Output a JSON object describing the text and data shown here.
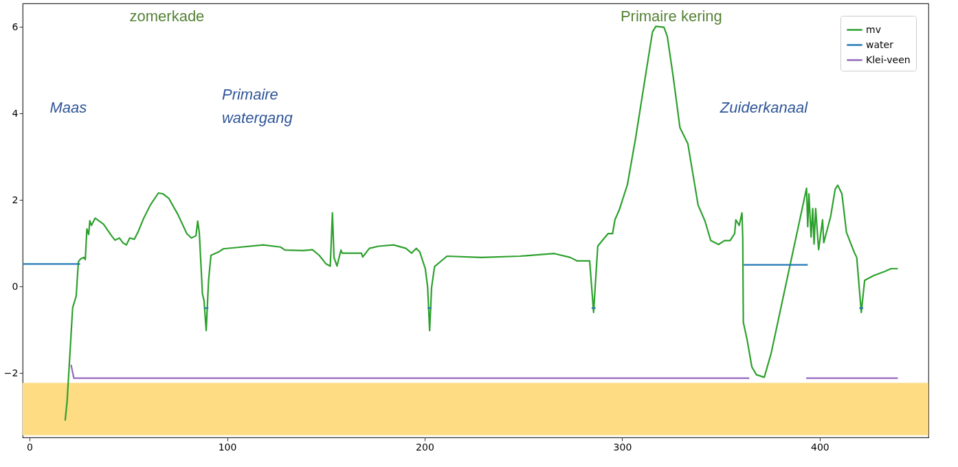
{
  "chart_data": {
    "type": "line",
    "xlim": [
      -3.5,
      455
    ],
    "ylim": [
      -3.49,
      6.54
    ],
    "xticks": [
      0,
      100,
      200,
      300,
      400
    ],
    "yticks": [
      {
        "value": -2,
        "label": "−2"
      },
      0,
      2,
      4,
      6
    ],
    "grid": false,
    "legend": "top right",
    "line_style": "solid",
    "marker": "none",
    "series": [
      {
        "name": "mv",
        "color": "#2ca02c",
        "x": [
          18.0,
          19.0,
          21.8,
          23.6,
          24.7,
          25.9,
          27.6,
          28.2,
          29.0,
          29.9,
          30.5,
          31.3,
          33.2,
          37.4,
          41.5,
          43.2,
          45.5,
          47.2,
          49.0,
          50.7,
          53.0,
          54.8,
          57.6,
          61.1,
          65.2,
          67.5,
          70.4,
          75.0,
          79.6,
          81.9,
          84.2,
          85.1,
          85.9,
          87.5,
          88.3,
          89.4,
          90.6,
          91.8,
          95.8,
          98.1,
          102.7,
          118.3,
          127.0,
          129.3,
          138.5,
          143.2,
          146.6,
          150.1,
          152.2,
          153.3,
          154.1,
          155.6,
          157.6,
          158.2,
          168.0,
          168.6,
          172.0,
          176.7,
          184.2,
          190.5,
          193.4,
          195.7,
          197.5,
          200.3,
          201.5,
          202.5,
          203.5,
          205.0,
          211.3,
          228.6,
          248.3,
          265.6,
          273.7,
          277.2,
          283.5,
          285.5,
          287.6,
          289.9,
          292.8,
          295.1,
          296.3,
          298.5,
          302.6,
          306.7,
          311.8,
          315.3,
          317.0,
          321.1,
          322.8,
          325.7,
          329.2,
          333.2,
          336.1,
          338.4,
          341.9,
          344.8,
          348.8,
          351.7,
          354.6,
          356.9,
          357.5,
          359.2,
          360.6,
          361.0,
          361.3,
          363.2,
          365.6,
          367.9,
          371.9,
          375.4,
          393.3,
          393.9,
          394.5,
          395.6,
          396.4,
          397.1,
          397.9,
          399.4,
          401.4,
          402.0,
          405.5,
          407.8,
          409.1,
          411.2,
          413.5,
          417.6,
          418.7,
          421.0,
          422.7,
          427.3,
          433.1,
          436.0,
          439.5
        ],
        "values": [
          -3.1,
          -2.65,
          -0.49,
          -0.22,
          0.57,
          0.64,
          0.67,
          0.62,
          1.33,
          1.2,
          1.52,
          1.41,
          1.58,
          1.44,
          1.17,
          1.07,
          1.12,
          1.01,
          0.96,
          1.12,
          1.09,
          1.25,
          1.56,
          1.88,
          2.16,
          2.14,
          2.04,
          1.67,
          1.22,
          1.12,
          1.17,
          1.51,
          1.25,
          -0.17,
          -0.33,
          -1.02,
          0.14,
          0.72,
          0.8,
          0.87,
          0.89,
          0.96,
          0.91,
          0.84,
          0.83,
          0.85,
          0.72,
          0.52,
          0.47,
          1.7,
          0.67,
          0.47,
          0.84,
          0.77,
          0.77,
          0.68,
          0.88,
          0.93,
          0.96,
          0.88,
          0.77,
          0.88,
          0.8,
          0.41,
          -0.02,
          -1.02,
          -0.02,
          0.46,
          0.7,
          0.67,
          0.7,
          0.76,
          0.67,
          0.59,
          0.59,
          -0.6,
          0.93,
          1.06,
          1.22,
          1.22,
          1.54,
          1.77,
          2.35,
          3.41,
          4.88,
          5.88,
          6.01,
          5.99,
          5.78,
          4.88,
          3.67,
          3.3,
          2.51,
          1.88,
          1.51,
          1.06,
          0.97,
          1.06,
          1.06,
          1.22,
          1.54,
          1.41,
          1.7,
          1.12,
          -0.83,
          -1.23,
          -1.86,
          -2.04,
          -2.1,
          -1.54,
          2.27,
          1.38,
          2.14,
          1.14,
          1.8,
          0.98,
          1.8,
          0.85,
          1.54,
          1.01,
          1.62,
          2.25,
          2.34,
          2.14,
          1.25,
          0.77,
          0.67,
          -0.6,
          0.14,
          0.25,
          0.35,
          0.41,
          0.41
        ]
      },
      {
        "name": "water",
        "color": "#1f77b4",
        "x": [
          -3.5,
          25.6,
          26,
          88.5,
          90.5,
          91,
          201.5,
          203.5,
          204,
          284.5,
          286.5,
          287,
          361.5,
          393.9,
          394,
          420,
          422
        ],
        "values": [
          0.52,
          0.52,
          null,
          -0.5,
          -0.5,
          null,
          -0.5,
          -0.5,
          null,
          -0.5,
          -0.5,
          null,
          0.5,
          0.5,
          null,
          -0.5,
          -0.5
        ]
      },
      {
        "name": "Klei-veen",
        "color": "#9467bd",
        "x": [
          21.0,
          22.4,
          364.3,
          380,
          393.1,
          439.5
        ],
        "values": [
          -1.81,
          -2.12,
          -2.12,
          null,
          -2.12,
          -2.12
        ]
      }
    ],
    "bands": [
      {
        "axis": "y",
        "from": -3.44,
        "to": -2.23,
        "color": "#fddc84"
      }
    ],
    "annotations": [
      "Maas",
      "zomerkade",
      "Primaire\nwatergang",
      "Primaire kering",
      "Zuiderkanaal"
    ]
  }
}
